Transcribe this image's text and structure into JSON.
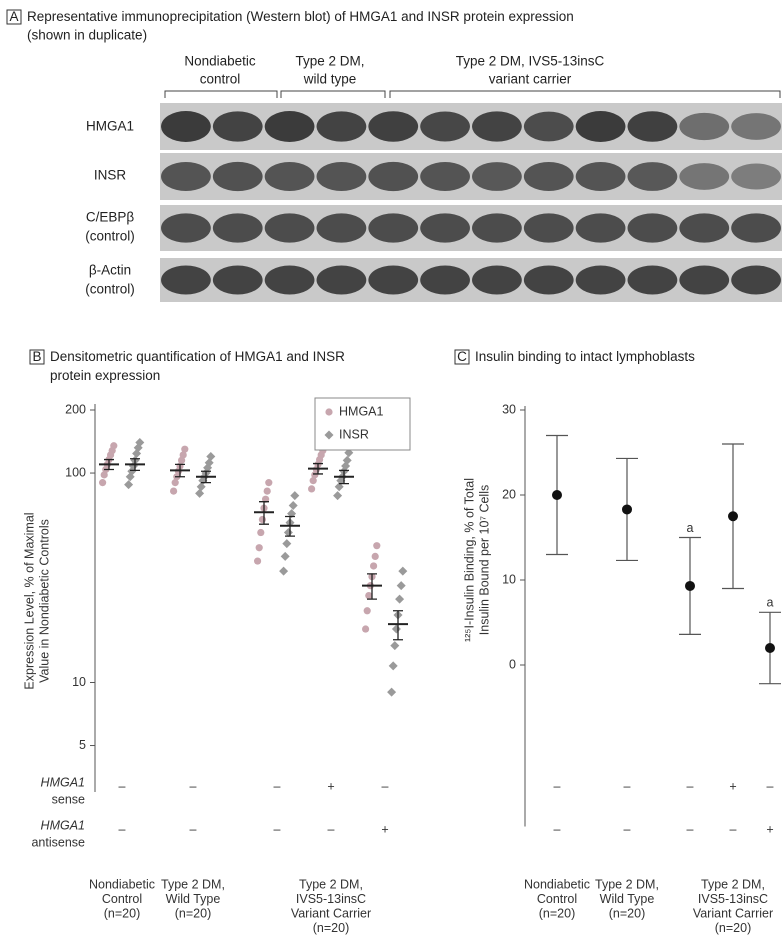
{
  "panel_a": {
    "label": "A",
    "title": [
      "Representative immunoprecipitation (Western blot) of HMGA1 and INSR protein expression",
      "(shown in duplicate)"
    ],
    "groups": [
      [
        "Nondiabetic",
        "control"
      ],
      [
        "Type 2 DM,",
        "wild type"
      ],
      [
        "Type 2 DM, IVS5-13insC",
        "variant carrier"
      ]
    ],
    "rows": [
      [
        "HMGA1"
      ],
      [
        "INSR"
      ],
      [
        "C/EBPβ",
        "(control)"
      ],
      [
        "β-Actin",
        "(control)"
      ]
    ]
  },
  "chart_data": [
    {
      "type": "dotplot",
      "label": "B",
      "title": [
        "Densitometric quantification of HMGA1 and INSR",
        "protein expression"
      ],
      "ylabel": [
        "Expression Level, % of Maximal",
        "Value in Nondiabetic Controls"
      ],
      "log_scale": true,
      "ylim": [
        3,
        200
      ],
      "yticks": [
        200,
        100,
        10,
        5
      ],
      "legend": "top-right",
      "categories": [
        [
          "Nondiabetic",
          "Control",
          "(n=20)"
        ],
        [
          "Type 2 DM,",
          "Wild Type",
          "(n=20)"
        ],
        null,
        [
          "Type 2 DM,",
          "IVS5-13insC",
          "Variant Carrier",
          "(n=20)"
        ],
        null
      ],
      "treatments": [
        {
          "gene": "HMGA1",
          "label": "sense",
          "signs": [
            "–",
            "–",
            "–",
            "+",
            "–"
          ]
        },
        {
          "gene": "HMGA1",
          "label": "antisense",
          "signs": [
            "–",
            "–",
            "–",
            "–",
            "+"
          ]
        }
      ],
      "series": [
        {
          "name": "HMGA1",
          "color": "#c7a6ae",
          "marker": "circle",
          "values": [
            110,
            103,
            65,
            105,
            29
          ],
          "errors": [
            6,
            7,
            8,
            6,
            4
          ],
          "points": [
            [
              90,
              98,
              104,
              110,
              116,
              122,
              128,
              135
            ],
            [
              82,
              90,
              96,
              102,
              108,
              115,
              122,
              130
            ],
            [
              38,
              44,
              52,
              60,
              68,
              75,
              82,
              90
            ],
            [
              84,
              92,
              98,
              104,
              110,
              116,
              122,
              128
            ],
            [
              18,
              22,
              26,
              29,
              32,
              36,
              40,
              45
            ]
          ]
        },
        {
          "name": "INSR",
          "color": "#9a9a9a",
          "marker": "diamond",
          "values": [
            110,
            96,
            56,
            96,
            19
          ],
          "errors": [
            7,
            6,
            6,
            7,
            3
          ],
          "points": [
            [
              88,
              96,
              102,
              108,
              115,
              124,
              132,
              140
            ],
            [
              80,
              86,
              92,
              96,
              100,
              106,
              112,
              120
            ],
            [
              34,
              40,
              46,
              52,
              58,
              64,
              70,
              78
            ],
            [
              78,
              86,
              92,
              96,
              102,
              108,
              115,
              125
            ],
            [
              9,
              12,
              15,
              18,
              21,
              25,
              29,
              34
            ]
          ]
        }
      ]
    },
    {
      "type": "errorbar",
      "label": "C",
      "title": [
        "Insulin binding to intact lymphoblasts"
      ],
      "ylabel": [
        "¹²⁵I-Insulin Binding, % of Total",
        "Insulin Bound per 10⁷ Cells"
      ],
      "ylim": [
        -19,
        30
      ],
      "yticks": [
        30,
        20,
        10,
        0
      ],
      "categories": [
        [
          "Nondiabetic",
          "Control",
          "(n=20)"
        ],
        [
          "Type 2 DM,",
          "Wild Type",
          "(n=20)"
        ],
        null,
        [
          "Type 2 DM,",
          "IVS5-13insC",
          "Variant Carrier",
          "(n=20)"
        ],
        null
      ],
      "treatments": [
        {
          "gene": "HMGA1",
          "label": "sense",
          "signs": [
            "–",
            "–",
            "–",
            "+",
            "–"
          ]
        },
        {
          "gene": "HMGA1",
          "label": "antisense",
          "signs": [
            "–",
            "–",
            "–",
            "–",
            "+"
          ]
        }
      ],
      "color": "#111111",
      "values": [
        20,
        18.3,
        9.3,
        17.5,
        2
      ],
      "errors": [
        7,
        6,
        5.7,
        8.5,
        4.2
      ],
      "annotations": [
        null,
        null,
        "a",
        null,
        "a"
      ]
    }
  ]
}
